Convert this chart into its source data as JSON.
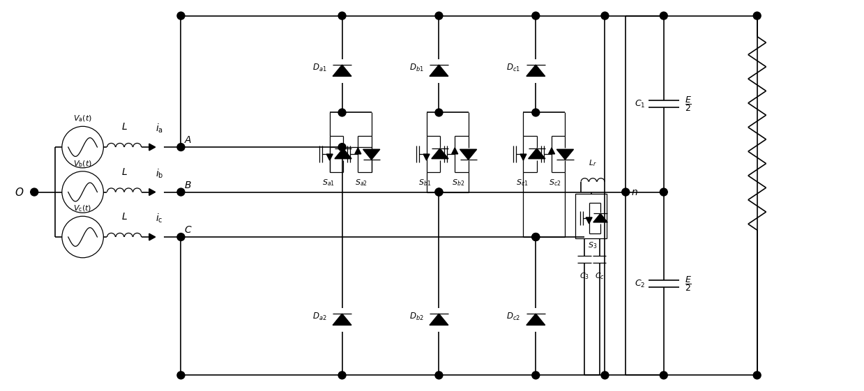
{
  "bg_color": "#ffffff",
  "line_color": "#000000",
  "fig_width": 12.39,
  "fig_height": 5.61,
  "dpi": 100
}
